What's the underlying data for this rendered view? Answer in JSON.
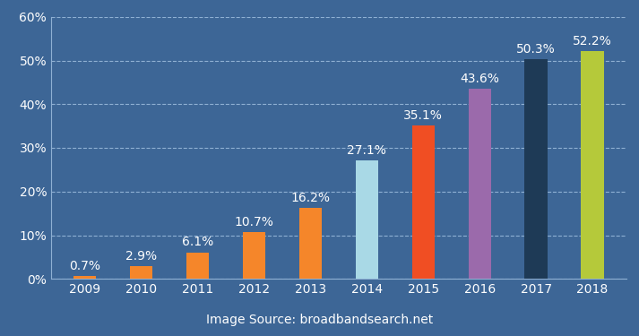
{
  "chart_data": {
    "type": "bar",
    "categories": [
      "2009",
      "2010",
      "2011",
      "2012",
      "2013",
      "2014",
      "2015",
      "2016",
      "2017",
      "2018"
    ],
    "values": [
      0.7,
      2.9,
      6.1,
      10.7,
      16.2,
      27.1,
      35.1,
      43.6,
      50.3,
      52.2
    ],
    "value_labels": [
      "0.7%",
      "2.9%",
      "6.1%",
      "10.7%",
      "16.2%",
      "27.1%",
      "35.1%",
      "43.6%",
      "50.3%",
      "52.2%"
    ],
    "data_labels": true,
    "colors": [
      "#f5862a",
      "#f5862a",
      "#f5862a",
      "#f5862a",
      "#f5862a",
      "#a9d9e6",
      "#f04e23",
      "#9b6aab",
      "#1e3a56",
      "#b5c93a"
    ],
    "ylim": [
      0,
      60
    ],
    "yticks": [
      {
        "value": 0,
        "label": "0%"
      },
      {
        "value": 10,
        "label": "10%"
      },
      {
        "value": 20,
        "label": "20%"
      },
      {
        "value": 30,
        "label": "30%"
      },
      {
        "value": 40,
        "label": "40%"
      },
      {
        "value": 50,
        "label": "50%"
      },
      {
        "value": 60,
        "label": "60%"
      }
    ],
    "grid": true,
    "annotation": "Image Source: broadbandsearch.net"
  }
}
